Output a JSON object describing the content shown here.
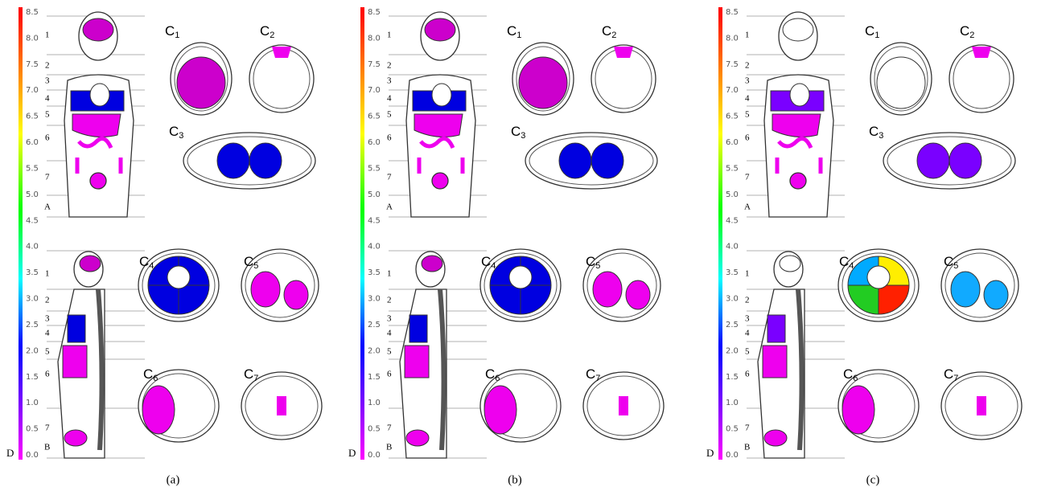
{
  "panels": [
    {
      "caption": "(a)",
      "scale": {
        "letter": "D",
        "ticks": [
          "0.0",
          "0.5",
          "1.0",
          "1.5",
          "2.0",
          "2.5",
          "3.0",
          "3.5",
          "4.0",
          "4.5",
          "5.0",
          "5.5",
          "6.0",
          "6.5",
          "7.0",
          "7.5",
          "8.0",
          "8.5"
        ]
      },
      "coronal": {
        "letter": "A",
        "rows": [
          "1",
          "2",
          "3",
          "4",
          "5",
          "6",
          "7"
        ]
      },
      "sagittal": {
        "letter": "B",
        "rows": [
          "1",
          "2",
          "3",
          "4",
          "5",
          "6",
          "7"
        ]
      },
      "sections": [
        {
          "letter": "C",
          "sub": "1"
        },
        {
          "letter": "C",
          "sub": "2"
        },
        {
          "letter": "C",
          "sub": "3"
        },
        {
          "letter": "C",
          "sub": "4"
        },
        {
          "letter": "C",
          "sub": "5"
        },
        {
          "letter": "C",
          "sub": "6"
        },
        {
          "letter": "C",
          "sub": "7"
        }
      ]
    },
    {
      "caption": "(b)",
      "scale": {
        "letter": "D",
        "ticks": [
          "0.0",
          "0.5",
          "1.0",
          "1.5",
          "2.0",
          "2.5",
          "3.0",
          "3.5",
          "4.0",
          "4.5",
          "5.0",
          "5.5",
          "6.0",
          "6.5",
          "7.0",
          "7.5",
          "8.0",
          "8.5"
        ]
      },
      "coronal": {
        "letter": "A",
        "rows": [
          "1",
          "2",
          "3",
          "4",
          "5",
          "6",
          "7"
        ]
      },
      "sagittal": {
        "letter": "B",
        "rows": [
          "1",
          "2",
          "3",
          "4",
          "5",
          "6",
          "7"
        ]
      },
      "sections": [
        {
          "letter": "C",
          "sub": "1"
        },
        {
          "letter": "C",
          "sub": "2"
        },
        {
          "letter": "C",
          "sub": "3"
        },
        {
          "letter": "C",
          "sub": "4"
        },
        {
          "letter": "C",
          "sub": "5"
        },
        {
          "letter": "C",
          "sub": "6"
        },
        {
          "letter": "C",
          "sub": "7"
        }
      ]
    },
    {
      "caption": "(c)",
      "scale": {
        "letter": "D",
        "ticks": [
          "0.0",
          "0.5",
          "1.0",
          "1.5",
          "2.0",
          "2.5",
          "3.0",
          "3.5",
          "4.0",
          "4.5",
          "5.0",
          "5.5",
          "6.0",
          "6.5",
          "7.0",
          "7.5",
          "8.0",
          "8.5"
        ]
      },
      "coronal": {
        "letter": "A",
        "rows": [
          "1",
          "2",
          "3",
          "4",
          "5",
          "6",
          "7"
        ]
      },
      "sagittal": {
        "letter": "B",
        "rows": [
          "1",
          "2",
          "3",
          "4",
          "5",
          "6",
          "7"
        ]
      },
      "sections": [
        {
          "letter": "C",
          "sub": "1"
        },
        {
          "letter": "C",
          "sub": "2"
        },
        {
          "letter": "C",
          "sub": "3"
        },
        {
          "letter": "C",
          "sub": "4"
        },
        {
          "letter": "C",
          "sub": "5"
        },
        {
          "letter": "C",
          "sub": "6"
        },
        {
          "letter": "C",
          "sub": "7"
        }
      ]
    }
  ]
}
